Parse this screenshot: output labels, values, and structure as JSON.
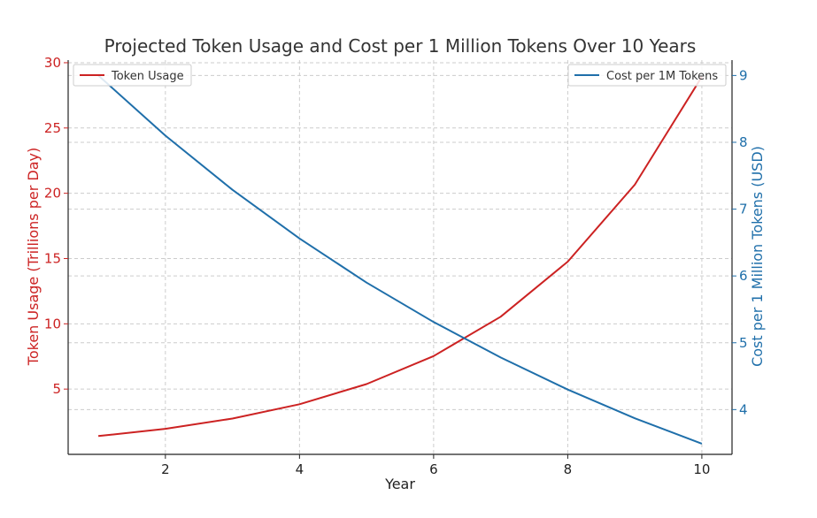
{
  "chart_data": {
    "type": "line",
    "title": "Projected Token Usage and Cost per 1 Million Tokens Over 10 Years",
    "xlabel": "Year",
    "ylabel_left": "Token Usage (Trillions per Day)",
    "ylabel_right": "Cost per 1 Million Tokens (USD)",
    "x": [
      1,
      2,
      3,
      4,
      5,
      6,
      7,
      8,
      9,
      10
    ],
    "x_ticks": [
      2,
      4,
      6,
      8,
      10
    ],
    "xlim": [
      0.55,
      10.45
    ],
    "y_left_ticks": [
      5,
      10,
      15,
      20,
      25,
      30
    ],
    "y_left_lim": [
      0,
      30.2
    ],
    "y_right_ticks": [
      4,
      5,
      6,
      7,
      8,
      9
    ],
    "y_right_lim": [
      3.33,
      9.23
    ],
    "grid": true,
    "series": [
      {
        "name": "Token Usage",
        "axis": "left",
        "color": "#cc2222",
        "values": [
          1.4,
          1.96,
          2.74,
          3.84,
          5.38,
          7.53,
          10.54,
          14.76,
          20.66,
          28.93
        ]
      },
      {
        "name": "Cost per 1M Tokens",
        "axis": "right",
        "color": "#1f6faa",
        "values": [
          9.0,
          8.1,
          7.29,
          6.56,
          5.9,
          5.31,
          4.78,
          4.3,
          3.87,
          3.49
        ]
      }
    ],
    "legend_left": "top-left",
    "legend_right": "top-right"
  }
}
